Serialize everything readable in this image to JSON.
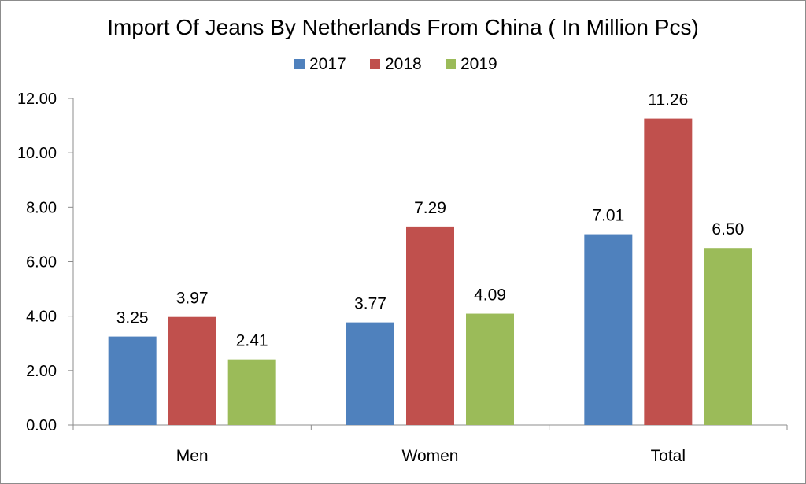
{
  "chart_data": {
    "type": "bar",
    "title": "Import Of Jeans By Netherlands From China ( In Million Pcs)",
    "categories": [
      "Men",
      "Women",
      "Total"
    ],
    "series": [
      {
        "name": "2017",
        "color": "#4f81bd",
        "values": [
          3.25,
          3.77,
          7.01
        ],
        "labels": [
          "3.25",
          "3.77",
          "7.01"
        ]
      },
      {
        "name": "2018",
        "color": "#c0504d",
        "values": [
          3.97,
          7.29,
          11.26
        ],
        "labels": [
          "3.97",
          "7.29",
          "11.26"
        ]
      },
      {
        "name": "2019",
        "color": "#9bbb59",
        "values": [
          2.41,
          4.09,
          6.5
        ],
        "labels": [
          "2.41",
          "4.09",
          "6.50"
        ]
      }
    ],
    "yticks": [
      "0.00",
      "2.00",
      "4.00",
      "6.00",
      "8.00",
      "10.00",
      "12.00"
    ],
    "ylim": [
      0,
      12
    ],
    "xlabel": "",
    "ylabel": "",
    "grid": false,
    "legend_position": "top"
  }
}
